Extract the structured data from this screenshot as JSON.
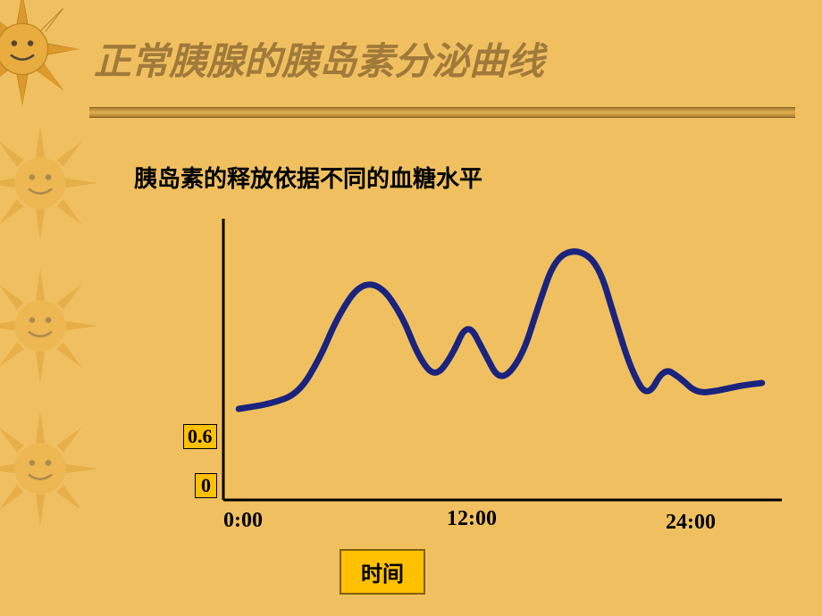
{
  "title": "正常胰腺的胰岛素分泌曲线",
  "subtitle": "胰岛素的释放依据不同的血糖水平",
  "chart": {
    "type": "line",
    "line_color": "#1a237e",
    "line_width": 7,
    "axis_color": "#000000",
    "y_labels": {
      "v06": "0.6",
      "v0": "0"
    },
    "x_labels": {
      "t0": "0:00",
      "t12": "12:00",
      "t24": "24:00"
    },
    "x_axis_label": "时间",
    "points": [
      [
        0.02,
        0.7
      ],
      [
        0.08,
        0.68
      ],
      [
        0.13,
        0.64
      ],
      [
        0.17,
        0.5
      ],
      [
        0.2,
        0.35
      ],
      [
        0.24,
        0.22
      ],
      [
        0.28,
        0.22
      ],
      [
        0.32,
        0.34
      ],
      [
        0.35,
        0.5
      ],
      [
        0.38,
        0.58
      ],
      [
        0.41,
        0.5
      ],
      [
        0.44,
        0.36
      ],
      [
        0.47,
        0.48
      ],
      [
        0.5,
        0.6
      ],
      [
        0.54,
        0.5
      ],
      [
        0.57,
        0.3
      ],
      [
        0.6,
        0.12
      ],
      [
        0.64,
        0.08
      ],
      [
        0.68,
        0.14
      ],
      [
        0.71,
        0.35
      ],
      [
        0.74,
        0.55
      ],
      [
        0.77,
        0.66
      ],
      [
        0.8,
        0.54
      ],
      [
        0.83,
        0.58
      ],
      [
        0.86,
        0.64
      ],
      [
        0.9,
        0.63
      ],
      [
        0.94,
        0.61
      ],
      [
        0.98,
        0.6
      ]
    ],
    "ylim": [
      0,
      1
    ],
    "xlim": [
      0,
      1
    ]
  },
  "colors": {
    "background": "#f0c060",
    "accent_box": "#ffc000",
    "title_color": "#a07a3a",
    "sun_fill": "#e0a030",
    "sun_face": "#2a2a2a"
  },
  "fonts": {
    "title_size_pt": 32,
    "subtitle_size_pt": 20,
    "label_size_pt": 18
  }
}
